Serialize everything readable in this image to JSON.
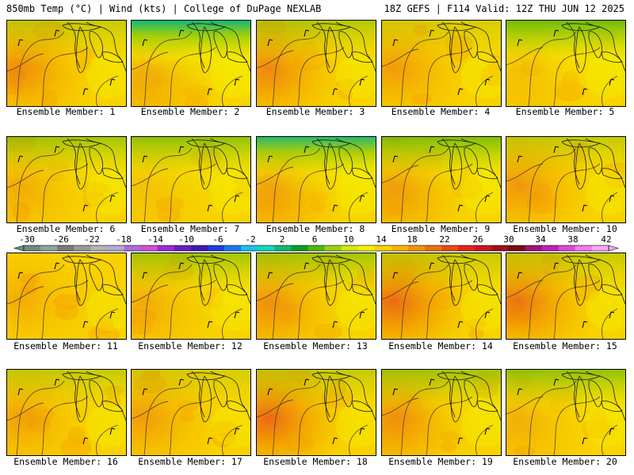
{
  "header": {
    "left": "850mb Temp (°C) | Wind (kts) | College of DuPage NEXLAB",
    "right": "18Z GEFS | F114 Valid: 12Z THU JUN 12 2025"
  },
  "panels": [
    {
      "label": "Ensemble Member: 1",
      "cool_north": 0.3,
      "warm_west": 0.7
    },
    {
      "label": "Ensemble Member: 2",
      "cool_north": 1.0,
      "warm_west": 0.8
    },
    {
      "label": "Ensemble Member: 3",
      "cool_north": 0.4,
      "warm_west": 0.8
    },
    {
      "label": "Ensemble Member: 4",
      "cool_north": 0.2,
      "warm_west": 0.5
    },
    {
      "label": "Ensemble Member: 5",
      "cool_north": 0.8,
      "warm_west": 0.4
    },
    {
      "label": "Ensemble Member: 6",
      "cool_north": 0.5,
      "warm_west": 0.5
    },
    {
      "label": "Ensemble Member: 7",
      "cool_north": 0.6,
      "warm_west": 0.3
    },
    {
      "label": "Ensemble Member: 8",
      "cool_north": 0.9,
      "warm_west": 0.9
    },
    {
      "label": "Ensemble Member: 9",
      "cool_north": 0.7,
      "warm_west": 0.8
    },
    {
      "label": "Ensemble Member: 10",
      "cool_north": 0.3,
      "warm_west": 0.6
    },
    {
      "label": "Ensemble Member: 11",
      "cool_north": 0.0,
      "warm_west": 0.3
    },
    {
      "label": "Ensemble Member: 12",
      "cool_north": 0.5,
      "warm_west": 0.5
    },
    {
      "label": "Ensemble Member: 13",
      "cool_north": 0.5,
      "warm_west": 0.8
    },
    {
      "label": "Ensemble Member: 14",
      "cool_north": 0.3,
      "warm_west": 1.0
    },
    {
      "label": "Ensemble Member: 15",
      "cool_north": 0.3,
      "warm_west": 0.9
    },
    {
      "label": "Ensemble Member: 16",
      "cool_north": 0.3,
      "warm_west": 0.5
    },
    {
      "label": "Ensemble Member: 17",
      "cool_north": 0.2,
      "warm_west": 0.5
    },
    {
      "label": "Ensemble Member: 18",
      "cool_north": 0.3,
      "warm_west": 1.0
    },
    {
      "label": "Ensemble Member: 19",
      "cool_north": 0.5,
      "warm_west": 0.8
    },
    {
      "label": "Ensemble Member: 20",
      "cool_north": 0.6,
      "warm_west": 0.5
    }
  ],
  "colorbar": {
    "labels": [
      "-30",
      "-26",
      "-22",
      "-18",
      "-14",
      "-10",
      "-6",
      "-2",
      "2",
      "6",
      "10",
      "14",
      "18",
      "22",
      "26",
      "30",
      "34",
      "38",
      "42"
    ],
    "colors": [
      "#6f8a80",
      "#8fa39b",
      "#7a7a7a",
      "#9a9a9a",
      "#b3b3b3",
      "#b7a7d9",
      "#b06ad8",
      "#d24dd6",
      "#9a2cd6",
      "#6a1cc4",
      "#4018b2",
      "#1d3be0",
      "#1a78f0",
      "#18c0f2",
      "#14d6b8",
      "#10b878",
      "#109a28",
      "#4db80c",
      "#9ad10a",
      "#d6e80a",
      "#f4f000",
      "#f8d200",
      "#f6b400",
      "#f29400",
      "#ec6e0c",
      "#e84a10",
      "#e42414",
      "#c8141c",
      "#a00e1c",
      "#7a0a14",
      "#a4107a",
      "#c41eb8",
      "#e048d8",
      "#f27ae8",
      "#f8a8f2"
    ]
  }
}
